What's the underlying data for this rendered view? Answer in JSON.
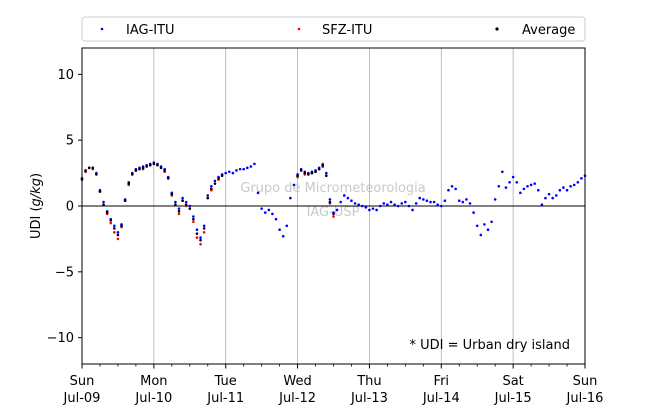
{
  "chart_data": {
    "type": "scatter",
    "ylabel_prefix": "UDI (",
    "ylabel_unit": "g/kg",
    "ylabel_suffix": ")",
    "ylim": [
      -12,
      12
    ],
    "yticks": [
      -10,
      -5,
      0,
      5,
      10
    ],
    "xlim": [
      0,
      7
    ],
    "x_unit": "days",
    "x_ticks": [
      {
        "x": 0,
        "day": "Sun",
        "date": "Jul-09"
      },
      {
        "x": 1,
        "day": "Mon",
        "date": "Jul-10"
      },
      {
        "x": 2,
        "day": "Tue",
        "date": "Jul-11"
      },
      {
        "x": 3,
        "day": "Wed",
        "date": "Jul-12"
      },
      {
        "x": 4,
        "day": "Thu",
        "date": "Jul-13"
      },
      {
        "x": 5,
        "day": "Fri",
        "date": "Jul-14"
      },
      {
        "x": 6,
        "day": "Sat",
        "date": "Jul-15"
      },
      {
        "x": 7,
        "day": "Sun",
        "date": "Jul-16"
      }
    ],
    "grid_x": true,
    "zero_line": true,
    "legend_position": "top",
    "annotation": "* UDI = Urban dry island",
    "watermark": [
      "Grupo de Micrometeorologia",
      "IAG-USP"
    ],
    "series": [
      {
        "name": "IAG-ITU",
        "color": "#0000ff",
        "points": [
          [
            0.0,
            2.0
          ],
          [
            0.05,
            2.6
          ],
          [
            0.1,
            2.9
          ],
          [
            0.15,
            2.9
          ],
          [
            0.2,
            2.5
          ],
          [
            0.25,
            1.2
          ],
          [
            0.3,
            0.3
          ],
          [
            0.35,
            -0.4
          ],
          [
            0.4,
            -1.0
          ],
          [
            0.45,
            -1.5
          ],
          [
            0.5,
            -2.0
          ],
          [
            0.55,
            -1.4
          ],
          [
            0.6,
            0.5
          ],
          [
            0.65,
            1.8
          ],
          [
            0.7,
            2.5
          ],
          [
            0.75,
            2.8
          ],
          [
            0.8,
            2.9
          ],
          [
            0.85,
            3.0
          ],
          [
            0.9,
            3.1
          ],
          [
            0.95,
            3.2
          ],
          [
            1.0,
            3.3
          ],
          [
            1.05,
            3.2
          ],
          [
            1.1,
            3.0
          ],
          [
            1.15,
            2.8
          ],
          [
            1.2,
            2.2
          ],
          [
            1.25,
            1.0
          ],
          [
            1.3,
            0.3
          ],
          [
            1.35,
            -0.2
          ],
          [
            1.4,
            0.6
          ],
          [
            1.45,
            0.3
          ],
          [
            1.5,
            0.0
          ],
          [
            1.55,
            -0.8
          ],
          [
            1.6,
            -1.8
          ],
          [
            1.65,
            -2.4
          ],
          [
            1.7,
            -1.5
          ],
          [
            1.75,
            0.8
          ],
          [
            1.8,
            1.5
          ],
          [
            1.85,
            1.9
          ],
          [
            1.9,
            2.2
          ],
          [
            1.95,
            2.4
          ],
          [
            2.0,
            2.5
          ],
          [
            2.05,
            2.6
          ],
          [
            2.1,
            2.5
          ],
          [
            2.15,
            2.7
          ],
          [
            2.2,
            2.8
          ],
          [
            2.25,
            2.8
          ],
          [
            2.3,
            2.9
          ],
          [
            2.35,
            3.0
          ],
          [
            2.4,
            3.2
          ],
          [
            2.45,
            1.0
          ],
          [
            2.5,
            -0.2
          ],
          [
            2.55,
            -0.5
          ],
          [
            2.6,
            -0.3
          ],
          [
            2.65,
            -0.6
          ],
          [
            2.7,
            -1.0
          ],
          [
            2.75,
            -1.8
          ],
          [
            2.8,
            -2.3
          ],
          [
            2.85,
            -1.5
          ],
          [
            2.9,
            0.6
          ],
          [
            2.95,
            1.6
          ],
          [
            3.0,
            2.4
          ],
          [
            3.05,
            2.8
          ],
          [
            3.1,
            2.6
          ],
          [
            3.15,
            2.5
          ],
          [
            3.2,
            2.6
          ],
          [
            3.25,
            2.7
          ],
          [
            3.3,
            2.9
          ],
          [
            3.35,
            3.0
          ],
          [
            3.4,
            2.5
          ],
          [
            3.45,
            0.5
          ],
          [
            3.5,
            -0.5
          ],
          [
            3.55,
            -0.3
          ],
          [
            3.6,
            0.3
          ],
          [
            3.65,
            0.8
          ],
          [
            3.7,
            0.6
          ],
          [
            3.75,
            0.4
          ],
          [
            3.8,
            0.2
          ],
          [
            3.85,
            0.1
          ],
          [
            3.9,
            0.0
          ],
          [
            3.95,
            -0.1
          ],
          [
            4.0,
            -0.3
          ],
          [
            4.05,
            -0.2
          ],
          [
            4.1,
            -0.3
          ],
          [
            4.15,
            0.0
          ],
          [
            4.2,
            0.2
          ],
          [
            4.25,
            0.1
          ],
          [
            4.3,
            0.3
          ],
          [
            4.35,
            0.1
          ],
          [
            4.4,
            0.0
          ],
          [
            4.45,
            0.2
          ],
          [
            4.5,
            0.3
          ],
          [
            4.55,
            0.0
          ],
          [
            4.6,
            -0.3
          ],
          [
            4.65,
            0.2
          ],
          [
            4.7,
            0.6
          ],
          [
            4.75,
            0.5
          ],
          [
            4.8,
            0.4
          ],
          [
            4.85,
            0.3
          ],
          [
            4.9,
            0.3
          ],
          [
            4.95,
            0.1
          ],
          [
            5.0,
            0.0
          ],
          [
            5.05,
            0.4
          ],
          [
            5.1,
            1.2
          ],
          [
            5.15,
            1.5
          ],
          [
            5.2,
            1.3
          ],
          [
            5.25,
            0.4
          ],
          [
            5.3,
            0.3
          ],
          [
            5.35,
            0.5
          ],
          [
            5.4,
            0.2
          ],
          [
            5.45,
            -0.5
          ],
          [
            5.5,
            -1.5
          ],
          [
            5.55,
            -2.2
          ],
          [
            5.6,
            -1.4
          ],
          [
            5.65,
            -1.8
          ],
          [
            5.7,
            -1.2
          ],
          [
            5.75,
            0.5
          ],
          [
            5.8,
            1.5
          ],
          [
            5.85,
            2.6
          ],
          [
            5.9,
            1.4
          ],
          [
            5.95,
            1.8
          ],
          [
            6.0,
            2.2
          ],
          [
            6.05,
            1.8
          ],
          [
            6.1,
            1.0
          ],
          [
            6.15,
            1.3
          ],
          [
            6.2,
            1.5
          ],
          [
            6.25,
            1.6
          ],
          [
            6.3,
            1.7
          ],
          [
            6.35,
            1.2
          ],
          [
            6.4,
            0.1
          ],
          [
            6.45,
            0.6
          ],
          [
            6.5,
            0.9
          ],
          [
            6.55,
            0.6
          ],
          [
            6.6,
            0.8
          ],
          [
            6.65,
            1.2
          ],
          [
            6.7,
            1.4
          ],
          [
            6.75,
            1.2
          ],
          [
            6.8,
            1.5
          ],
          [
            6.85,
            1.6
          ],
          [
            6.9,
            1.8
          ],
          [
            6.95,
            2.1
          ],
          [
            7.0,
            2.3
          ]
        ]
      },
      {
        "name": "SFZ-ITU",
        "color": "#ff0000",
        "points": [
          [
            0.05,
            2.6
          ],
          [
            0.15,
            2.8
          ],
          [
            0.25,
            1.1
          ],
          [
            0.35,
            -0.6
          ],
          [
            0.4,
            -1.3
          ],
          [
            0.45,
            -2.0
          ],
          [
            0.5,
            -2.5
          ],
          [
            0.55,
            -1.6
          ],
          [
            0.65,
            1.6
          ],
          [
            0.75,
            2.7
          ],
          [
            0.85,
            2.8
          ],
          [
            0.95,
            3.1
          ],
          [
            1.05,
            3.1
          ],
          [
            1.15,
            2.6
          ],
          [
            1.25,
            0.8
          ],
          [
            1.35,
            -0.6
          ],
          [
            1.45,
            0.0
          ],
          [
            1.55,
            -1.2
          ],
          [
            1.6,
            -2.4
          ],
          [
            1.65,
            -2.9
          ],
          [
            1.7,
            -2.0
          ],
          [
            1.8,
            1.2
          ],
          [
            1.9,
            2.0
          ],
          [
            3.0,
            2.2
          ],
          [
            3.1,
            2.4
          ],
          [
            3.2,
            2.5
          ],
          [
            3.3,
            2.8
          ],
          [
            3.35,
            3.2
          ],
          [
            3.45,
            0.2
          ],
          [
            3.5,
            -0.8
          ]
        ]
      },
      {
        "name": "Average",
        "color": "#000000",
        "points": [
          [
            0.0,
            2.1
          ],
          [
            0.05,
            2.7
          ],
          [
            0.1,
            2.9
          ],
          [
            0.15,
            2.9
          ],
          [
            0.2,
            2.4
          ],
          [
            0.25,
            1.1
          ],
          [
            0.3,
            0.1
          ],
          [
            0.35,
            -0.5
          ],
          [
            0.4,
            -1.1
          ],
          [
            0.45,
            -1.7
          ],
          [
            0.5,
            -2.2
          ],
          [
            0.55,
            -1.5
          ],
          [
            0.6,
            0.4
          ],
          [
            0.65,
            1.7
          ],
          [
            0.7,
            2.4
          ],
          [
            0.75,
            2.7
          ],
          [
            0.8,
            2.8
          ],
          [
            0.85,
            2.9
          ],
          [
            0.9,
            3.0
          ],
          [
            0.95,
            3.1
          ],
          [
            1.0,
            3.2
          ],
          [
            1.05,
            3.1
          ],
          [
            1.1,
            2.9
          ],
          [
            1.15,
            2.7
          ],
          [
            1.2,
            2.1
          ],
          [
            1.25,
            0.9
          ],
          [
            1.3,
            0.1
          ],
          [
            1.35,
            -0.4
          ],
          [
            1.4,
            0.4
          ],
          [
            1.45,
            0.1
          ],
          [
            1.5,
            -0.2
          ],
          [
            1.55,
            -1.0
          ],
          [
            1.6,
            -2.1
          ],
          [
            1.65,
            -2.6
          ],
          [
            1.7,
            -1.7
          ],
          [
            1.75,
            0.6
          ],
          [
            1.8,
            1.3
          ],
          [
            1.85,
            1.7
          ],
          [
            1.9,
            2.1
          ],
          [
            1.95,
            2.3
          ],
          [
            3.0,
            2.3
          ],
          [
            3.05,
            2.7
          ],
          [
            3.1,
            2.5
          ],
          [
            3.15,
            2.4
          ],
          [
            3.2,
            2.5
          ],
          [
            3.25,
            2.6
          ],
          [
            3.3,
            2.8
          ],
          [
            3.35,
            3.1
          ],
          [
            3.4,
            2.3
          ],
          [
            3.45,
            0.3
          ],
          [
            3.5,
            -0.6
          ]
        ]
      }
    ]
  }
}
